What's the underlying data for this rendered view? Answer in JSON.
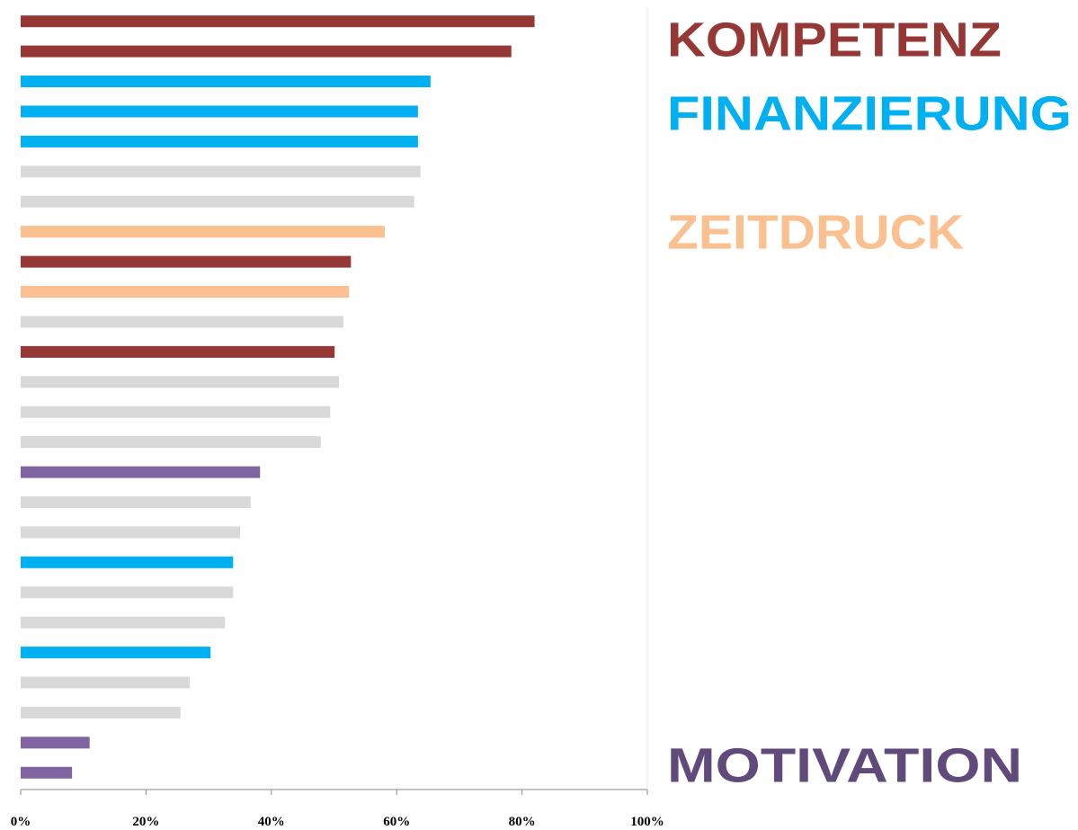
{
  "chart_data": {
    "type": "barh",
    "categories": [
      null,
      null,
      null,
      null,
      null,
      null,
      null,
      null,
      null,
      null,
      null,
      null,
      null,
      null,
      null,
      null,
      null,
      null,
      null,
      null,
      null,
      null,
      null,
      null,
      null,
      null
    ],
    "values": [
      82,
      78.3,
      65.4,
      63.4,
      63.4,
      63.8,
      62.8,
      58.1,
      52.7,
      52.4,
      51.5,
      50.1,
      50.8,
      49.4,
      47.9,
      38.2,
      36.7,
      35.0,
      33.9,
      33.9,
      32.6,
      30.3,
      27.0,
      25.5,
      11.0,
      8.2
    ],
    "colors": [
      "#953735",
      "#953735",
      "#00b0f0",
      "#00b0f0",
      "#00b0f0",
      "#d9d9d9",
      "#d9d9d9",
      "#fac090",
      "#953735",
      "#fac090",
      "#d9d9d9",
      "#953735",
      "#d9d9d9",
      "#d9d9d9",
      "#d9d9d9",
      "#8064a2",
      "#d9d9d9",
      "#d9d9d9",
      "#00b0f0",
      "#d9d9d9",
      "#d9d9d9",
      "#00b0f0",
      "#d9d9d9",
      "#d9d9d9",
      "#8064a2",
      "#8064a2"
    ],
    "xlim": [
      0,
      100
    ],
    "xticks": [
      {
        "value": 0,
        "label": "0%"
      },
      {
        "value": 20,
        "label": "20%"
      },
      {
        "value": 40,
        "label": "40%"
      },
      {
        "value": 60,
        "label": "60%"
      },
      {
        "value": 80,
        "label": "80%"
      },
      {
        "value": 100,
        "label": "100%"
      }
    ],
    "annotations": [
      {
        "text": "KOMPETENZ",
        "color": "#953735"
      },
      {
        "text": "FINANZIERUNG",
        "color": "#00b0f0"
      },
      {
        "text": "ZEITDRUCK",
        "color": "#fac090"
      },
      {
        "text": "MOTIVATION",
        "color": "#604a7b"
      }
    ]
  }
}
